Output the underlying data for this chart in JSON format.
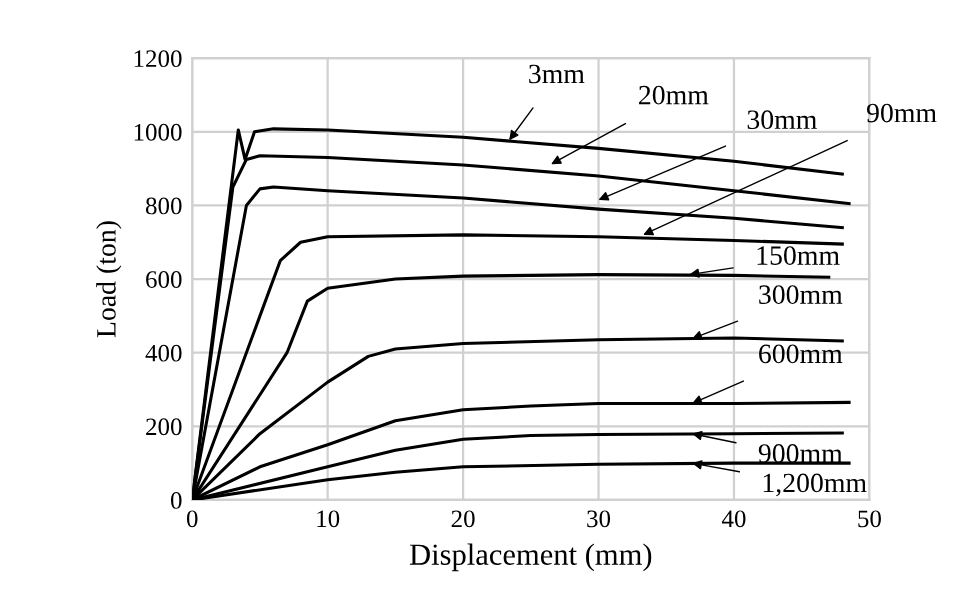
{
  "chart_data": {
    "type": "line",
    "xlabel": "Displacement (mm)",
    "ylabel": "Load (ton)",
    "xlim": [
      0,
      50
    ],
    "xticks": [
      0,
      10,
      20,
      30,
      40,
      50
    ],
    "ylim": [
      0,
      1200
    ],
    "yticks": [
      0,
      200,
      400,
      600,
      800,
      1000,
      1200
    ],
    "grid": true,
    "legend": false,
    "marker": "none",
    "line_style": "solid",
    "series": [
      {
        "color": "#000000",
        "x": [
          0,
          3.4,
          3.9,
          4.6,
          6,
          10,
          20,
          30,
          40,
          48
        ],
        "values": [
          0,
          1005,
          925,
          1000,
          1008,
          1005,
          985,
          955,
          920,
          885
        ]
      },
      {
        "color": "#000000",
        "x": [
          0,
          3,
          4,
          5,
          10,
          20,
          30,
          40,
          48.5
        ],
        "values": [
          0,
          850,
          925,
          935,
          930,
          910,
          880,
          840,
          805
        ]
      },
      {
        "color": "#000000",
        "x": [
          0,
          4,
          5,
          6,
          10,
          20,
          30,
          40,
          48
        ],
        "values": [
          0,
          800,
          845,
          850,
          840,
          820,
          790,
          765,
          740
        ]
      },
      {
        "color": "#000000",
        "x": [
          0,
          5,
          6.5,
          8,
          10,
          20,
          30,
          40,
          48
        ],
        "values": [
          0,
          500,
          650,
          700,
          715,
          720,
          715,
          705,
          695
        ]
      },
      {
        "color": "#000000",
        "x": [
          0,
          7,
          8.5,
          10,
          15,
          20,
          30,
          40,
          47
        ],
        "values": [
          0,
          400,
          540,
          575,
          600,
          608,
          612,
          610,
          605
        ]
      },
      {
        "color": "#000000",
        "x": [
          0,
          5,
          10,
          13,
          15,
          20,
          30,
          40,
          48
        ],
        "values": [
          0,
          180,
          320,
          390,
          410,
          425,
          435,
          440,
          432
        ]
      },
      {
        "color": "#000000",
        "x": [
          0,
          5,
          10,
          15,
          20,
          25,
          30,
          40,
          48.5
        ],
        "values": [
          0,
          90,
          150,
          215,
          245,
          255,
          262,
          262,
          265
        ]
      },
      {
        "color": "#000000",
        "x": [
          0,
          10,
          15,
          20,
          25,
          30,
          40,
          48
        ],
        "values": [
          0,
          90,
          135,
          165,
          175,
          178,
          180,
          182
        ]
      },
      {
        "color": "#000000",
        "x": [
          0,
          10,
          15,
          20,
          30,
          40,
          48.5
        ],
        "values": [
          0,
          55,
          75,
          90,
          97,
          100,
          100
        ]
      }
    ],
    "annotations": [
      {
        "text": "3mm",
        "x": 23.4,
        "y": 977
      },
      {
        "text": "20mm",
        "x": 26.5,
        "y": 912
      },
      {
        "text": "30mm",
        "x": 30,
        "y": 815
      },
      {
        "text": "90mm",
        "x": 33.3,
        "y": 720
      },
      {
        "text": "150mm",
        "x": 36.7,
        "y": 612
      },
      {
        "text": "300mm",
        "x": 36.9,
        "y": 438
      },
      {
        "text": "600mm",
        "x": 36.9,
        "y": 262
      },
      {
        "text": "900mm",
        "x": 36.9,
        "y": 180
      },
      {
        "text": "1,200mm",
        "x": 36.9,
        "y": 100
      }
    ]
  }
}
